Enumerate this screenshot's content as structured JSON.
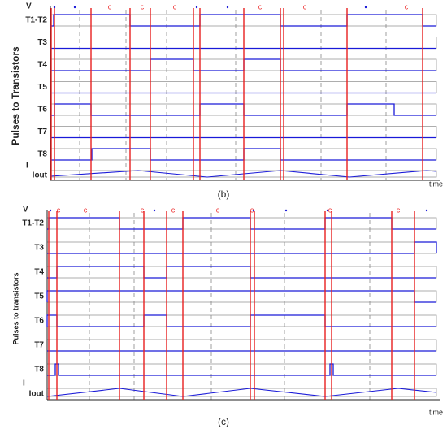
{
  "panels": [
    {
      "v_label": "V",
      "ylabel": "Pulses to Transistors",
      "rows": [
        "T1-T2",
        "T3",
        "T4",
        "T5",
        "T6",
        "T7",
        "T8"
      ],
      "i_label": "I",
      "iout_label": "Iout",
      "x_label": "time",
      "caption": "(b)",
      "markers": [
        "c",
        "c",
        "c",
        "c",
        "c",
        "c"
      ]
    },
    {
      "v_label": "V",
      "ylabel": "Pulses to transistors",
      "rows": [
        "T1-T2",
        "T3",
        "T4",
        "T5",
        "T6",
        "T7",
        "T8"
      ],
      "i_label": "I",
      "iout_label": "Iout",
      "x_label": "time",
      "caption": "(c)",
      "markers": [
        "c",
        "c",
        "c",
        "c",
        "c",
        "c",
        "c",
        "c"
      ]
    }
  ]
}
